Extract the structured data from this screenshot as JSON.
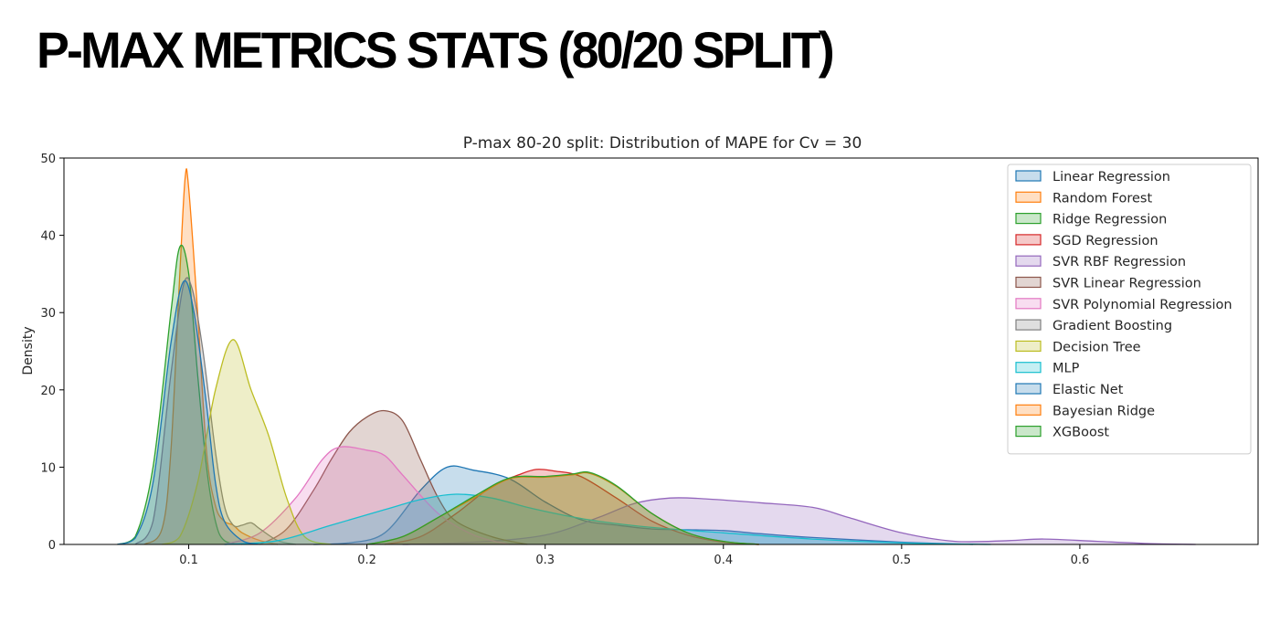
{
  "slide": {
    "title": "P-MAX METRICS STATS (80/20 SPLIT)"
  },
  "chart_data": {
    "type": "area",
    "title": "P-max 80-20 split:  Distribution of MAPE for Cv = 30",
    "xlabel": "",
    "ylabel": "Density",
    "xlim": [
      0.03,
      0.7
    ],
    "ylim": [
      0,
      50
    ],
    "xticks": [
      0.1,
      0.2,
      0.3,
      0.4,
      0.5,
      0.6
    ],
    "xtick_labels": [
      "0.1",
      "0.2",
      "0.3",
      "0.4",
      "0.5",
      "0.6"
    ],
    "yticks": [
      0,
      10,
      20,
      30,
      40,
      50
    ],
    "ytick_labels": [
      "0",
      "10",
      "20",
      "30",
      "40",
      "50"
    ],
    "grid": false,
    "legend_position": "top-right",
    "series": [
      {
        "name": "Linear Regression",
        "color": "#1f77b4",
        "points": [
          [
            0.17,
            0
          ],
          [
            0.19,
            0.2
          ],
          [
            0.21,
            1.5
          ],
          [
            0.23,
            7
          ],
          [
            0.245,
            10
          ],
          [
            0.26,
            9.6
          ],
          [
            0.28,
            8.5
          ],
          [
            0.3,
            5.5
          ],
          [
            0.32,
            3.2
          ],
          [
            0.34,
            2.5
          ],
          [
            0.36,
            2.0
          ],
          [
            0.38,
            1.9
          ],
          [
            0.4,
            1.8
          ],
          [
            0.42,
            1.4
          ],
          [
            0.45,
            0.9
          ],
          [
            0.5,
            0.3
          ],
          [
            0.54,
            0
          ]
        ]
      },
      {
        "name": "Random Forest",
        "color": "#ff7f0e",
        "points": [
          [
            0.075,
            0
          ],
          [
            0.085,
            2
          ],
          [
            0.09,
            12
          ],
          [
            0.095,
            35
          ],
          [
            0.098,
            47.5
          ],
          [
            0.1,
            46
          ],
          [
            0.105,
            30
          ],
          [
            0.11,
            12
          ],
          [
            0.115,
            5
          ],
          [
            0.12,
            3
          ],
          [
            0.125,
            2.5
          ],
          [
            0.13,
            1.5
          ],
          [
            0.14,
            0.5
          ],
          [
            0.15,
            0
          ]
        ]
      },
      {
        "name": "Ridge Regression",
        "color": "#2ca02c",
        "points": [
          [
            0.06,
            0
          ],
          [
            0.07,
            1
          ],
          [
            0.08,
            10
          ],
          [
            0.09,
            30
          ],
          [
            0.095,
            38.5
          ],
          [
            0.1,
            35
          ],
          [
            0.105,
            22
          ],
          [
            0.11,
            10
          ],
          [
            0.115,
            3
          ],
          [
            0.12,
            0.5
          ],
          [
            0.13,
            0
          ]
        ]
      },
      {
        "name": "SGD Regression",
        "color": "#d62728",
        "points": [
          [
            0.21,
            0
          ],
          [
            0.23,
            1
          ],
          [
            0.25,
            4
          ],
          [
            0.27,
            7.5
          ],
          [
            0.285,
            9
          ],
          [
            0.295,
            9.7
          ],
          [
            0.305,
            9.5
          ],
          [
            0.32,
            8.8
          ],
          [
            0.34,
            6
          ],
          [
            0.36,
            3
          ],
          [
            0.38,
            1.2
          ],
          [
            0.4,
            0.3
          ],
          [
            0.42,
            0
          ]
        ]
      },
      {
        "name": "SVR RBF Regression",
        "color": "#9467bd",
        "points": [
          [
            0.22,
            0
          ],
          [
            0.26,
            0.3
          ],
          [
            0.3,
            1.2
          ],
          [
            0.33,
            3.5
          ],
          [
            0.35,
            5.3
          ],
          [
            0.37,
            6
          ],
          [
            0.39,
            5.9
          ],
          [
            0.42,
            5.4
          ],
          [
            0.45,
            4.8
          ],
          [
            0.47,
            3.5
          ],
          [
            0.5,
            1.5
          ],
          [
            0.53,
            0.4
          ],
          [
            0.56,
            0.5
          ],
          [
            0.58,
            0.7
          ],
          [
            0.61,
            0.4
          ],
          [
            0.64,
            0.1
          ],
          [
            0.665,
            0
          ]
        ]
      },
      {
        "name": "SVR Linear Regression",
        "color": "#8c564b",
        "points": [
          [
            0.14,
            0
          ],
          [
            0.155,
            2
          ],
          [
            0.17,
            7
          ],
          [
            0.18,
            11
          ],
          [
            0.19,
            14.5
          ],
          [
            0.2,
            16.5
          ],
          [
            0.21,
            17.3
          ],
          [
            0.22,
            16
          ],
          [
            0.23,
            11
          ],
          [
            0.24,
            6
          ],
          [
            0.25,
            3
          ],
          [
            0.27,
            1
          ],
          [
            0.29,
            0
          ]
        ]
      },
      {
        "name": "SVR Polynomial Regression",
        "color": "#e377c2",
        "points": [
          [
            0.12,
            0
          ],
          [
            0.14,
            1.5
          ],
          [
            0.16,
            6
          ],
          [
            0.175,
            11
          ],
          [
            0.185,
            12.6
          ],
          [
            0.2,
            12.2
          ],
          [
            0.21,
            11.5
          ],
          [
            0.22,
            9
          ],
          [
            0.24,
            4
          ],
          [
            0.26,
            1.2
          ],
          [
            0.28,
            0
          ]
        ]
      },
      {
        "name": "Gradient Boosting",
        "color": "#7f7f7f",
        "points": [
          [
            0.07,
            0
          ],
          [
            0.08,
            3
          ],
          [
            0.09,
            22
          ],
          [
            0.097,
            33.5
          ],
          [
            0.102,
            33
          ],
          [
            0.108,
            25
          ],
          [
            0.115,
            12
          ],
          [
            0.12,
            5
          ],
          [
            0.125,
            2.5
          ],
          [
            0.13,
            2.5
          ],
          [
            0.135,
            2.8
          ],
          [
            0.14,
            2
          ],
          [
            0.15,
            0.5
          ],
          [
            0.16,
            0
          ]
        ]
      },
      {
        "name": "Decision Tree",
        "color": "#bcbd22",
        "points": [
          [
            0.085,
            0
          ],
          [
            0.095,
            1
          ],
          [
            0.105,
            8
          ],
          [
            0.115,
            20
          ],
          [
            0.125,
            26.5
          ],
          [
            0.135,
            20
          ],
          [
            0.145,
            14
          ],
          [
            0.155,
            6
          ],
          [
            0.165,
            1
          ],
          [
            0.18,
            0
          ]
        ]
      },
      {
        "name": "MLP",
        "color": "#17becf",
        "points": [
          [
            0.12,
            0
          ],
          [
            0.15,
            0.5
          ],
          [
            0.18,
            2.5
          ],
          [
            0.21,
            4.5
          ],
          [
            0.23,
            5.8
          ],
          [
            0.25,
            6.5
          ],
          [
            0.27,
            6
          ],
          [
            0.29,
            4.8
          ],
          [
            0.31,
            3.8
          ],
          [
            0.33,
            3
          ],
          [
            0.36,
            2.2
          ],
          [
            0.4,
            1.5
          ],
          [
            0.45,
            0.7
          ],
          [
            0.5,
            0.2
          ],
          [
            0.55,
            0
          ]
        ]
      },
      {
        "name": "Elastic Net",
        "color": "#1f77b4",
        "points": [
          [
            0.06,
            0
          ],
          [
            0.07,
            0.8
          ],
          [
            0.08,
            8
          ],
          [
            0.09,
            26
          ],
          [
            0.097,
            34
          ],
          [
            0.103,
            30
          ],
          [
            0.11,
            18
          ],
          [
            0.115,
            8
          ],
          [
            0.12,
            3
          ],
          [
            0.13,
            0.5
          ],
          [
            0.14,
            0
          ]
        ]
      },
      {
        "name": "Bayesian Ridge",
        "color": "#ff7f0e",
        "points": [
          [
            0.2,
            0
          ],
          [
            0.22,
            1
          ],
          [
            0.24,
            3.5
          ],
          [
            0.26,
            6
          ],
          [
            0.28,
            8.5
          ],
          [
            0.3,
            8.7
          ],
          [
            0.315,
            9
          ],
          [
            0.325,
            9.2
          ],
          [
            0.34,
            7.5
          ],
          [
            0.36,
            4
          ],
          [
            0.38,
            1.5
          ],
          [
            0.4,
            0.4
          ],
          [
            0.42,
            0
          ]
        ]
      },
      {
        "name": "XGBoost",
        "color": "#2ca02c",
        "points": [
          [
            0.2,
            0
          ],
          [
            0.22,
            1
          ],
          [
            0.24,
            3.5
          ],
          [
            0.26,
            6.2
          ],
          [
            0.28,
            8.6
          ],
          [
            0.3,
            8.8
          ],
          [
            0.315,
            9.1
          ],
          [
            0.325,
            9.3
          ],
          [
            0.34,
            7.6
          ],
          [
            0.36,
            4
          ],
          [
            0.38,
            1.5
          ],
          [
            0.4,
            0.4
          ],
          [
            0.42,
            0
          ]
        ]
      }
    ]
  }
}
